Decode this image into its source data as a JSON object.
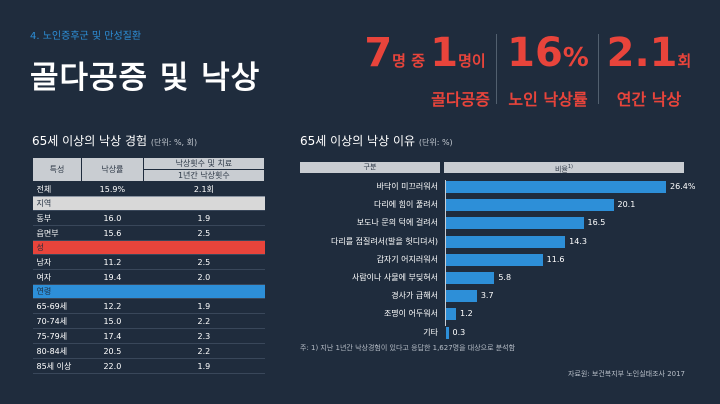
{
  "header": {
    "subtitle": "4. 노인증후군 및 만성질환",
    "title": "골다공증 및 낙상"
  },
  "stats": [
    {
      "num1": "7",
      "unit1": "명 중 ",
      "num2": "1",
      "unit2": "명이",
      "label": "골다공증"
    },
    {
      "num1": "16",
      "unit1": "%",
      "num2": "",
      "unit2": "",
      "label": "노인 낙상률"
    },
    {
      "num1": "2.1",
      "unit1": "회",
      "num2": "",
      "unit2": "",
      "label": "연간 낙상"
    }
  ],
  "left_section": {
    "title": "65세 이상의 낙상 경험",
    "unit": "(단위: %, 회)",
    "table": {
      "col_header_1": "특성",
      "col_header_2": "낙상률",
      "col_header_3a": "낙상횟수 및 치료",
      "col_header_3b": "1년간 낙상횟수",
      "total": {
        "label": "전체",
        "rate": "15.9%",
        "count": "2.1회"
      },
      "groups": [
        {
          "name": "지역",
          "rows": [
            {
              "label": "동부",
              "rate": "16.0",
              "count": "1.9"
            },
            {
              "label": "읍면부",
              "rate": "15.6",
              "count": "2.5"
            }
          ]
        },
        {
          "name": "성",
          "rows": [
            {
              "label": "남자",
              "rate": "11.2",
              "count": "2.5"
            },
            {
              "label": "여자",
              "rate": "19.4",
              "count": "2.0"
            }
          ]
        },
        {
          "name": "연령",
          "rows": [
            {
              "label": "65-69세",
              "rate": "12.2",
              "count": "1.9"
            },
            {
              "label": "70-74세",
              "rate": "15.0",
              "count": "2.2"
            },
            {
              "label": "75-79세",
              "rate": "17.4",
              "count": "2.3"
            },
            {
              "label": "80-84세",
              "rate": "20.5",
              "count": "2.2"
            },
            {
              "label": "85세 이상",
              "rate": "22.0",
              "count": "1.9"
            }
          ]
        }
      ]
    }
  },
  "right_section": {
    "title": "65세 이상의 낙상 이유",
    "unit": "(단위: %)",
    "head_left": "구분",
    "head_right": "비율"
  },
  "chart_data": {
    "type": "bar",
    "orientation": "horizontal",
    "categories": [
      "바닥이 미끄러워서",
      "다리에 힘이 풀려서",
      "보도나 문의 턱에 걸려서",
      "다리를 접질려서(발을 헛디뎌서)",
      "갑자기 어지러워서",
      "사람이나 사물에 부딪혀서",
      "경사가 급해서",
      "조명이 어두워서",
      "기타"
    ],
    "values": [
      26.4,
      20.1,
      16.5,
      14.3,
      11.6,
      5.8,
      3.7,
      1.2,
      0.3
    ],
    "value_labels": [
      "26.4%",
      "20.1",
      "16.5",
      "14.3",
      "11.6",
      "5.8",
      "3.7",
      "1.2",
      "0.3"
    ],
    "xlim": [
      0,
      30
    ],
    "bar_color": "#2d8fd8"
  },
  "footer": {
    "note": "주: 1) 지난 1년간 낙상경험이 있다고 응답한 1,627명을 대상으로 분석함",
    "source": "자료원: 보건복지부 노인실태조사 2017"
  }
}
